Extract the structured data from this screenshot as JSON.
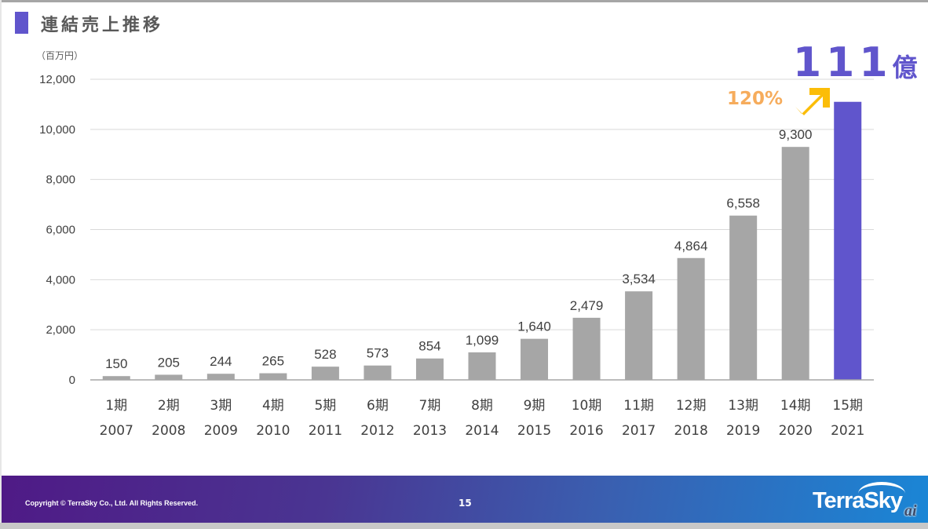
{
  "slide": {
    "title": "連結売上推移",
    "unit": "（百万円）",
    "highlight_value": "111",
    "highlight_unit": "億",
    "growth_rate": "120%",
    "footer": {
      "copyright": "Copyright © TerraSky Co., Ltd. All Rights Reserved.",
      "page_number": "15",
      "logo_text": "TerraSky",
      "logo_badge": "ai"
    }
  },
  "colors": {
    "accent": "#6055cc",
    "bar": "#a6a6a6",
    "growth": "#f6ac5c",
    "arrow": "#fbbd08"
  },
  "chart_data": {
    "type": "bar",
    "title": "連結売上推移",
    "ylabel": "（百万円）",
    "xlabel": "",
    "ylim": [
      0,
      12000
    ],
    "yticks": [
      0,
      2000,
      4000,
      6000,
      8000,
      10000,
      12000
    ],
    "ytick_labels": [
      "0",
      "2,000",
      "4,000",
      "6,000",
      "8,000",
      "10,000",
      "12,000"
    ],
    "grid": true,
    "categories": [
      "1期",
      "2期",
      "3期",
      "4期",
      "5期",
      "6期",
      "7期",
      "8期",
      "9期",
      "10期",
      "11期",
      "12期",
      "13期",
      "14期",
      "15期"
    ],
    "years": [
      "2007",
      "2008",
      "2009",
      "2010",
      "2011",
      "2012",
      "2013",
      "2014",
      "2015",
      "2016",
      "2017",
      "2018",
      "2019",
      "2020",
      "2021"
    ],
    "values": [
      150,
      205,
      244,
      265,
      528,
      573,
      854,
      1099,
      1640,
      2479,
      3534,
      4864,
      6558,
      9300,
      11100
    ],
    "value_labels": [
      "150",
      "205",
      "244",
      "265",
      "528",
      "573",
      "854",
      "1,099",
      "1,640",
      "2,479",
      "3,534",
      "4,864",
      "6,558",
      "9,300",
      ""
    ],
    "highlighted_index": 14,
    "annotations": [
      "111億",
      "120%"
    ]
  }
}
